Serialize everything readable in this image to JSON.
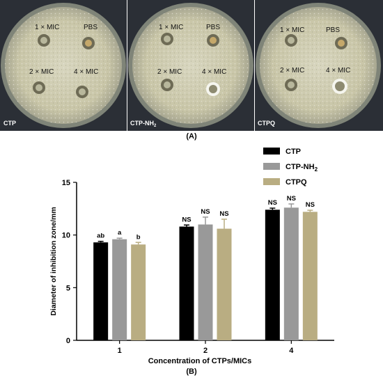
{
  "panel_a": {
    "label": "(A)",
    "plates": [
      {
        "name": "CTP",
        "sub": "",
        "wells": [
          "1 × MIC",
          "PBS",
          "2 × MIC",
          "4 × MIC"
        ]
      },
      {
        "name": "CTP-NH",
        "sub": "2",
        "wells": [
          "1 × MIC",
          "PBS",
          "2 × MIC",
          "4 × MIC"
        ]
      },
      {
        "name": "CTPQ",
        "sub": "",
        "wells": [
          "1 × MIC",
          "PBS",
          "2 × MIC",
          "4 × MIC"
        ]
      }
    ]
  },
  "panel_b": {
    "label": "(B)"
  },
  "chart_data": {
    "type": "bar",
    "categories": [
      "1",
      "2",
      "4"
    ],
    "xlabel": "Concentration of CTPs/MICs",
    "ylabel": "Diameter of inhibition zone/mm",
    "ylim": [
      0,
      15
    ],
    "yticks": [
      "0",
      "5",
      "10",
      "15"
    ],
    "legend_position": "top-right",
    "series": [
      {
        "name": "CTP",
        "name_sub": "",
        "color": "#000000",
        "values": [
          9.3,
          10.8,
          12.4
        ],
        "errors": [
          0.1,
          0.15,
          0.15
        ],
        "annotations": [
          "ab",
          "NS",
          "NS"
        ]
      },
      {
        "name": "CTP-NH",
        "name_sub": "2",
        "color": "#999999",
        "values": [
          9.6,
          11.0,
          12.6
        ],
        "errors": [
          0.1,
          0.7,
          0.35
        ],
        "annotations": [
          "a",
          "NS",
          "NS"
        ]
      },
      {
        "name": "CTPQ",
        "name_sub": "",
        "color": "#b9ad82",
        "values": [
          9.1,
          10.6,
          12.2
        ],
        "errors": [
          0.2,
          0.9,
          0.15
        ],
        "annotations": [
          "b",
          "NS",
          "NS"
        ]
      }
    ]
  }
}
